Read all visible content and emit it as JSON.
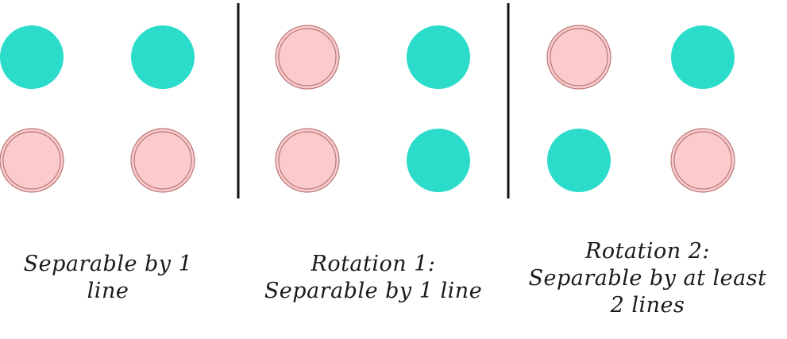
{
  "colors": {
    "teal": "#2bdccb",
    "pink_fill": "#fbcaca",
    "pink_stroke": "#b87878",
    "divider": "#111111"
  },
  "panels": [
    {
      "caption_lines": [
        "Separable by 1",
        "line"
      ],
      "dots": [
        {
          "row": 1,
          "col": 1,
          "class": "teal"
        },
        {
          "row": 1,
          "col": 2,
          "class": "teal"
        },
        {
          "row": 2,
          "col": 1,
          "class": "pink"
        },
        {
          "row": 2,
          "col": 2,
          "class": "pink"
        }
      ]
    },
    {
      "caption_lines": [
        "Rotation 1:",
        "Separable by 1 line"
      ],
      "dots": [
        {
          "row": 1,
          "col": 1,
          "class": "pink"
        },
        {
          "row": 1,
          "col": 2,
          "class": "teal"
        },
        {
          "row": 2,
          "col": 1,
          "class": "pink"
        },
        {
          "row": 2,
          "col": 2,
          "class": "teal"
        }
      ]
    },
    {
      "caption_lines": [
        "Rotation 2:",
        "Separable by at least",
        "2 lines"
      ],
      "dots": [
        {
          "row": 1,
          "col": 1,
          "class": "pink"
        },
        {
          "row": 1,
          "col": 2,
          "class": "teal"
        },
        {
          "row": 2,
          "col": 1,
          "class": "teal"
        },
        {
          "row": 2,
          "col": 2,
          "class": "pink"
        }
      ]
    }
  ]
}
